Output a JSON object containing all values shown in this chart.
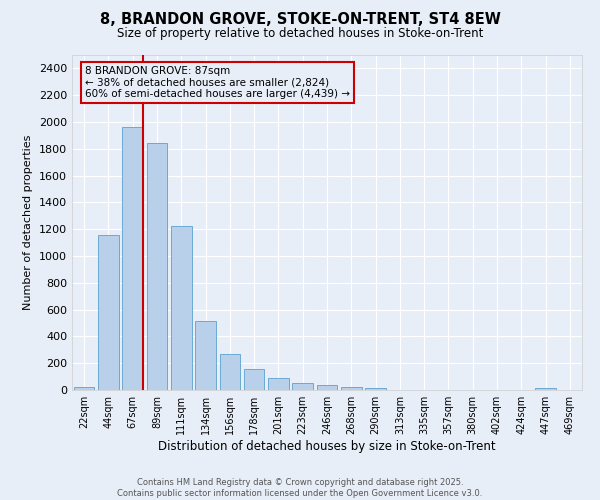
{
  "title": "8, BRANDON GROVE, STOKE-ON-TRENT, ST4 8EW",
  "subtitle": "Size of property relative to detached houses in Stoke-on-Trent",
  "xlabel": "Distribution of detached houses by size in Stoke-on-Trent",
  "ylabel": "Number of detached properties",
  "categories": [
    "22sqm",
    "44sqm",
    "67sqm",
    "89sqm",
    "111sqm",
    "134sqm",
    "156sqm",
    "178sqm",
    "201sqm",
    "223sqm",
    "246sqm",
    "268sqm",
    "290sqm",
    "313sqm",
    "335sqm",
    "357sqm",
    "380sqm",
    "402sqm",
    "424sqm",
    "447sqm",
    "469sqm"
  ],
  "values": [
    25,
    1155,
    1960,
    1845,
    1225,
    515,
    270,
    155,
    90,
    50,
    38,
    22,
    12,
    0,
    0,
    0,
    0,
    0,
    0,
    12,
    0
  ],
  "bar_color": "#b8d0ea",
  "bar_edge_color": "#6aaad4",
  "bg_color": "#e8eef8",
  "grid_color": "#ffffff",
  "vline_color": "#cc0000",
  "annotation_text": "8 BRANDON GROVE: 87sqm\n← 38% of detached houses are smaller (2,824)\n60% of semi-detached houses are larger (4,439) →",
  "ylim": [
    0,
    2500
  ],
  "yticks": [
    0,
    200,
    400,
    600,
    800,
    1000,
    1200,
    1400,
    1600,
    1800,
    2000,
    2200,
    2400
  ],
  "footer_line1": "Contains HM Land Registry data © Crown copyright and database right 2025.",
  "footer_line2": "Contains public sector information licensed under the Open Government Licence v3.0."
}
